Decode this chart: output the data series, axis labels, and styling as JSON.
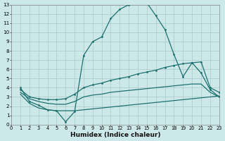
{
  "xlabel": "Humidex (Indice chaleur)",
  "xlim": [
    0,
    23
  ],
  "ylim": [
    0,
    13
  ],
  "xticks": [
    0,
    1,
    2,
    3,
    4,
    5,
    6,
    7,
    8,
    9,
    10,
    11,
    12,
    13,
    14,
    15,
    16,
    17,
    18,
    19,
    20,
    21,
    22,
    23
  ],
  "yticks": [
    0,
    1,
    2,
    3,
    4,
    5,
    6,
    7,
    8,
    9,
    10,
    11,
    12,
    13
  ],
  "bg_color": "#cde8e8",
  "grid_color": "#aed0d0",
  "line_color": "#1e7070",
  "curve1_x": [
    1,
    2,
    3,
    4,
    5,
    6,
    7,
    8,
    9,
    10,
    11,
    12,
    13,
    14,
    15,
    16,
    17,
    18,
    19,
    20,
    21,
    22,
    23
  ],
  "curve1_y": [
    4.0,
    2.5,
    2.1,
    1.6,
    1.5,
    0.3,
    1.4,
    7.5,
    9.0,
    9.5,
    11.5,
    12.5,
    13.0,
    13.2,
    13.2,
    11.8,
    10.3,
    7.6,
    5.2,
    6.7,
    5.6,
    3.8,
    3.0
  ],
  "curve2_x": [
    1,
    2,
    3,
    4,
    5,
    6,
    7,
    8,
    9,
    10,
    11,
    12,
    13,
    14,
    15,
    16,
    17,
    18,
    19,
    20,
    21,
    22,
    23
  ],
  "curve2_y": [
    3.8,
    3.0,
    2.8,
    2.7,
    2.7,
    2.8,
    3.3,
    4.0,
    4.3,
    4.5,
    4.8,
    5.0,
    5.2,
    5.5,
    5.7,
    5.9,
    6.2,
    6.4,
    6.6,
    6.7,
    6.8,
    4.0,
    3.5
  ],
  "curve3_x": [
    1,
    2,
    3,
    4,
    5,
    6,
    7,
    8,
    9,
    10,
    11,
    12,
    13,
    14,
    15,
    16,
    17,
    18,
    19,
    20,
    21,
    22,
    23
  ],
  "curve3_y": [
    3.5,
    2.8,
    2.5,
    2.3,
    2.2,
    2.2,
    2.5,
    3.0,
    3.2,
    3.3,
    3.5,
    3.6,
    3.7,
    3.8,
    3.9,
    4.0,
    4.1,
    4.2,
    4.3,
    4.4,
    4.4,
    3.5,
    3.0
  ],
  "curve4_x": [
    1,
    2,
    3,
    4,
    5,
    6,
    7,
    8,
    9,
    10,
    11,
    12,
    13,
    14,
    15,
    16,
    17,
    18,
    19,
    20,
    21,
    22,
    23
  ],
  "curve4_y": [
    3.3,
    2.3,
    1.8,
    1.6,
    1.5,
    1.5,
    1.5,
    1.6,
    1.7,
    1.8,
    1.9,
    2.0,
    2.1,
    2.2,
    2.3,
    2.4,
    2.5,
    2.6,
    2.7,
    2.8,
    2.9,
    3.0,
    3.1
  ]
}
